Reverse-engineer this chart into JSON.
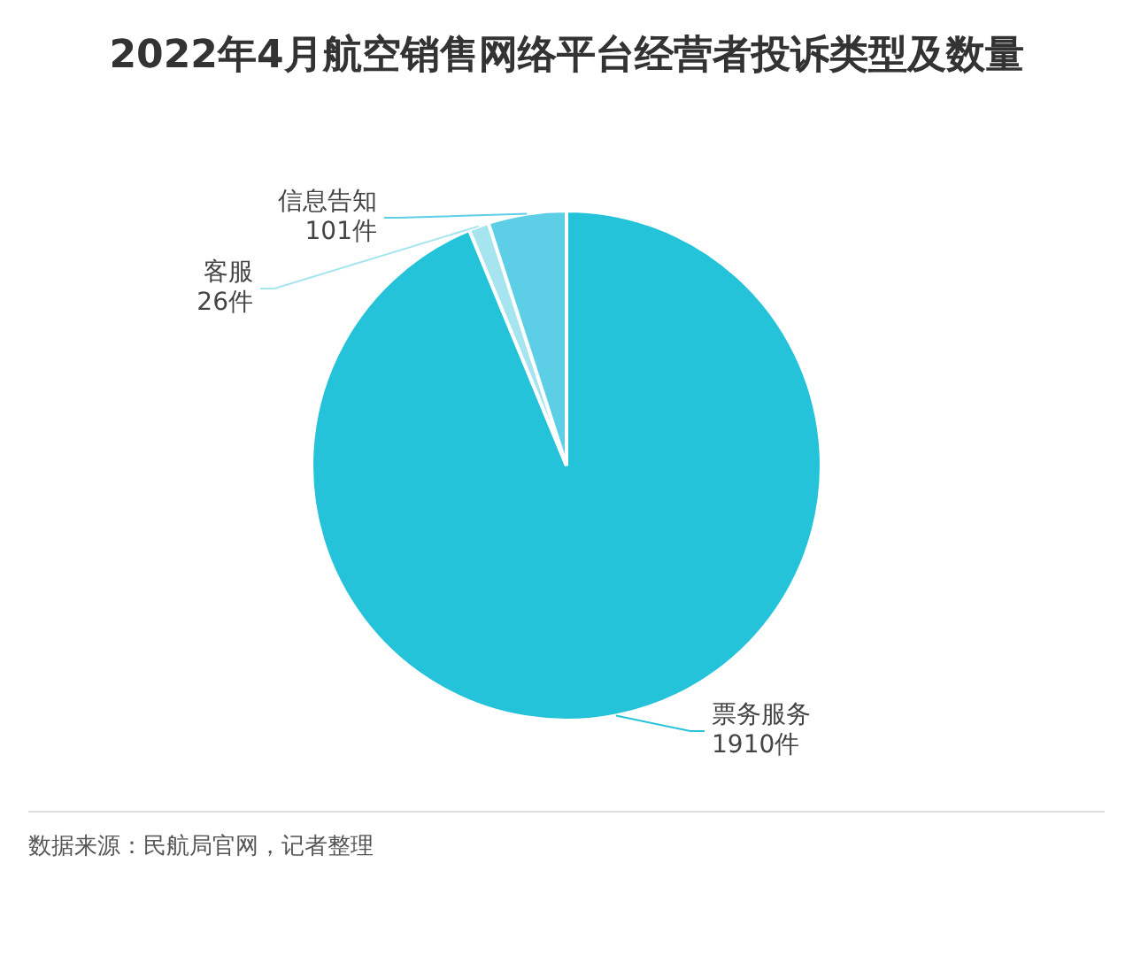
{
  "chart_data": {
    "type": "pie",
    "title": "2022年4月航空销售网络平台经营者投诉类型及数量",
    "categories": [
      "票务服务",
      "客服",
      "信息告知"
    ],
    "values": [
      1910,
      26,
      101
    ],
    "value_labels": [
      "1910件",
      "26件",
      "101件"
    ],
    "colors": [
      "#25c3d9",
      "#a6e4ef",
      "#5ccfe6"
    ],
    "legend": false,
    "annotations": [
      "数据来源：民航局官网，记者整理"
    ]
  }
}
